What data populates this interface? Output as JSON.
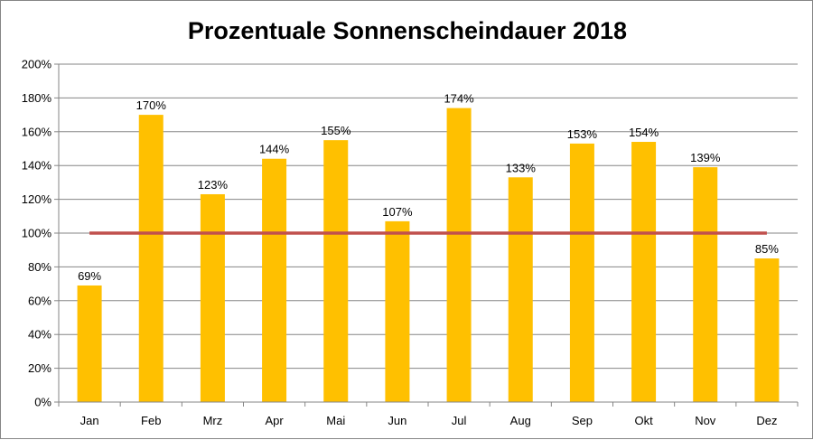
{
  "chart_data": {
    "type": "bar",
    "title": "Prozentuale Sonnenscheindauer 2018",
    "xlabel": "",
    "ylabel": "",
    "categories": [
      "Jan",
      "Feb",
      "Mrz",
      "Apr",
      "Mai",
      "Jun",
      "Jul",
      "Aug",
      "Sep",
      "Okt",
      "Nov",
      "Dez"
    ],
    "values": [
      69,
      170,
      123,
      144,
      155,
      107,
      174,
      133,
      153,
      154,
      139,
      85
    ],
    "value_labels": [
      "69%",
      "170%",
      "123%",
      "144%",
      "155%",
      "107%",
      "174%",
      "133%",
      "153%",
      "154%",
      "139%",
      "85%"
    ],
    "ylim": [
      0,
      200
    ],
    "ytick_values": [
      0,
      20,
      40,
      60,
      80,
      100,
      120,
      140,
      160,
      180,
      200
    ],
    "ytick_labels": [
      "0%",
      "20%",
      "40%",
      "60%",
      "80%",
      "100%",
      "120%",
      "140%",
      "160%",
      "180%",
      "200%"
    ],
    "reference_line": {
      "value": 100,
      "color": "#C0504D"
    },
    "grid": true,
    "legend": "none",
    "bar_color": "#FFC000",
    "grid_color": "#868686"
  }
}
